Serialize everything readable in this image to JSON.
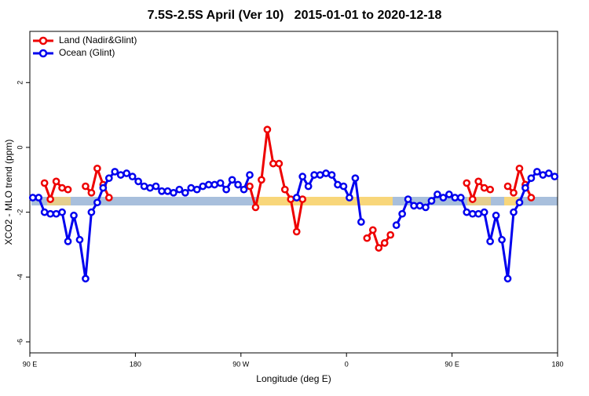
{
  "chart_data": {
    "type": "line",
    "title": "7.5S-2.5S April (Ver 10)   2015-01-01 to 2020-12-18",
    "x_label": "Longitude (deg E)",
    "y_label": "XCO2 - MLO trend (ppm)",
    "xlim": [
      90,
      540
    ],
    "ylim": [
      -6.34,
      3.58
    ],
    "xticks": [
      {
        "value": 90,
        "label": "90 E"
      },
      {
        "value": 180,
        "label": "180"
      },
      {
        "value": 270,
        "label": "90 W"
      },
      {
        "value": 360,
        "label": "0"
      },
      {
        "value": 450,
        "label": "90 E"
      },
      {
        "value": 540,
        "label": "180"
      }
    ],
    "yticks": [
      -6,
      -4,
      -2,
      0,
      2
    ],
    "legend": "top-left",
    "x": [
      92.5,
      97.5,
      102.5,
      107.5,
      112.5,
      117.5,
      122.5,
      127.5,
      132.5,
      137.5,
      142.5,
      147.5,
      152.5,
      157.5,
      162.5,
      167.5,
      172.5,
      177.5,
      182.5,
      187.5,
      192.5,
      197.5,
      202.5,
      207.5,
      212.5,
      217.5,
      222.5,
      227.5,
      232.5,
      237.5,
      242.5,
      247.5,
      252.5,
      257.5,
      262.5,
      267.5,
      272.5,
      277.5,
      282.5,
      287.5,
      292.5,
      297.5,
      302.5,
      307.5,
      312.5,
      317.5,
      322.5,
      327.5,
      332.5,
      337.5,
      342.5,
      347.5,
      352.5,
      357.5,
      362.5,
      367.5,
      372.5,
      377.5,
      382.5,
      387.5,
      392.5,
      397.5,
      402.5,
      407.5,
      412.5,
      417.5,
      422.5,
      427.5,
      432.5,
      437.5,
      442.5,
      447.5,
      452.5,
      457.5,
      462.5,
      467.5,
      472.5,
      477.5,
      482.5,
      487.5,
      492.5,
      497.5,
      502.5,
      507.5,
      512.5,
      517.5,
      522.5,
      527.5,
      532.5,
      537.5
    ],
    "series": [
      {
        "name": "Land (Nadir&Glint)",
        "color": "#ee0000",
        "values": [
          null,
          null,
          -1.1,
          -1.6,
          -1.05,
          -1.25,
          -1.3,
          null,
          null,
          -1.2,
          -1.4,
          -0.65,
          -1.15,
          -1.55,
          null,
          null,
          null,
          null,
          null,
          null,
          null,
          null,
          null,
          null,
          null,
          null,
          null,
          null,
          null,
          null,
          null,
          null,
          null,
          null,
          null,
          null,
          null,
          -1.2,
          -1.85,
          -1.0,
          0.55,
          -0.5,
          -0.5,
          -1.3,
          -1.6,
          -2.6,
          -1.6,
          null,
          null,
          null,
          null,
          null,
          null,
          null,
          null,
          null,
          null,
          -2.8,
          -2.55,
          -3.1,
          -2.95,
          -2.7,
          null,
          null,
          null,
          null,
          null,
          null,
          null,
          null,
          null,
          null,
          null,
          null,
          -1.1,
          -1.6,
          -1.05,
          -1.25,
          -1.3,
          null,
          null,
          -1.2,
          -1.4,
          -0.65,
          -1.15,
          -1.55,
          null,
          null,
          null,
          null
        ]
      },
      {
        "name": "Ocean (Glint)",
        "color": "#0000ee",
        "values": [
          -1.55,
          -1.55,
          -2.0,
          -2.05,
          -2.05,
          -2.0,
          -2.9,
          -2.1,
          -2.85,
          -4.05,
          -2.0,
          -1.7,
          -1.25,
          -0.95,
          -0.75,
          -0.85,
          -0.8,
          -0.9,
          -1.05,
          -1.2,
          -1.25,
          -1.2,
          -1.35,
          -1.35,
          -1.4,
          -1.3,
          -1.4,
          -1.25,
          -1.3,
          -1.2,
          -1.15,
          -1.15,
          -1.1,
          -1.3,
          -1.0,
          -1.15,
          -1.3,
          -0.85,
          null,
          null,
          null,
          null,
          null,
          null,
          null,
          -1.55,
          -0.9,
          -1.2,
          -0.85,
          -0.85,
          -0.8,
          -0.85,
          -1.15,
          -1.2,
          -1.55,
          -0.95,
          -2.3,
          null,
          null,
          null,
          null,
          null,
          -2.4,
          -2.05,
          -1.6,
          -1.8,
          -1.8,
          -1.85,
          -1.65,
          -1.45,
          -1.55,
          -1.45,
          -1.55,
          -1.55,
          -2.0,
          -2.05,
          -2.05,
          -2.0,
          -2.9,
          -2.1,
          -2.85,
          -4.05,
          -2.0,
          -1.7,
          -1.25,
          -0.95,
          -0.75,
          -0.85,
          -0.8,
          -0.9
        ]
      }
    ]
  }
}
